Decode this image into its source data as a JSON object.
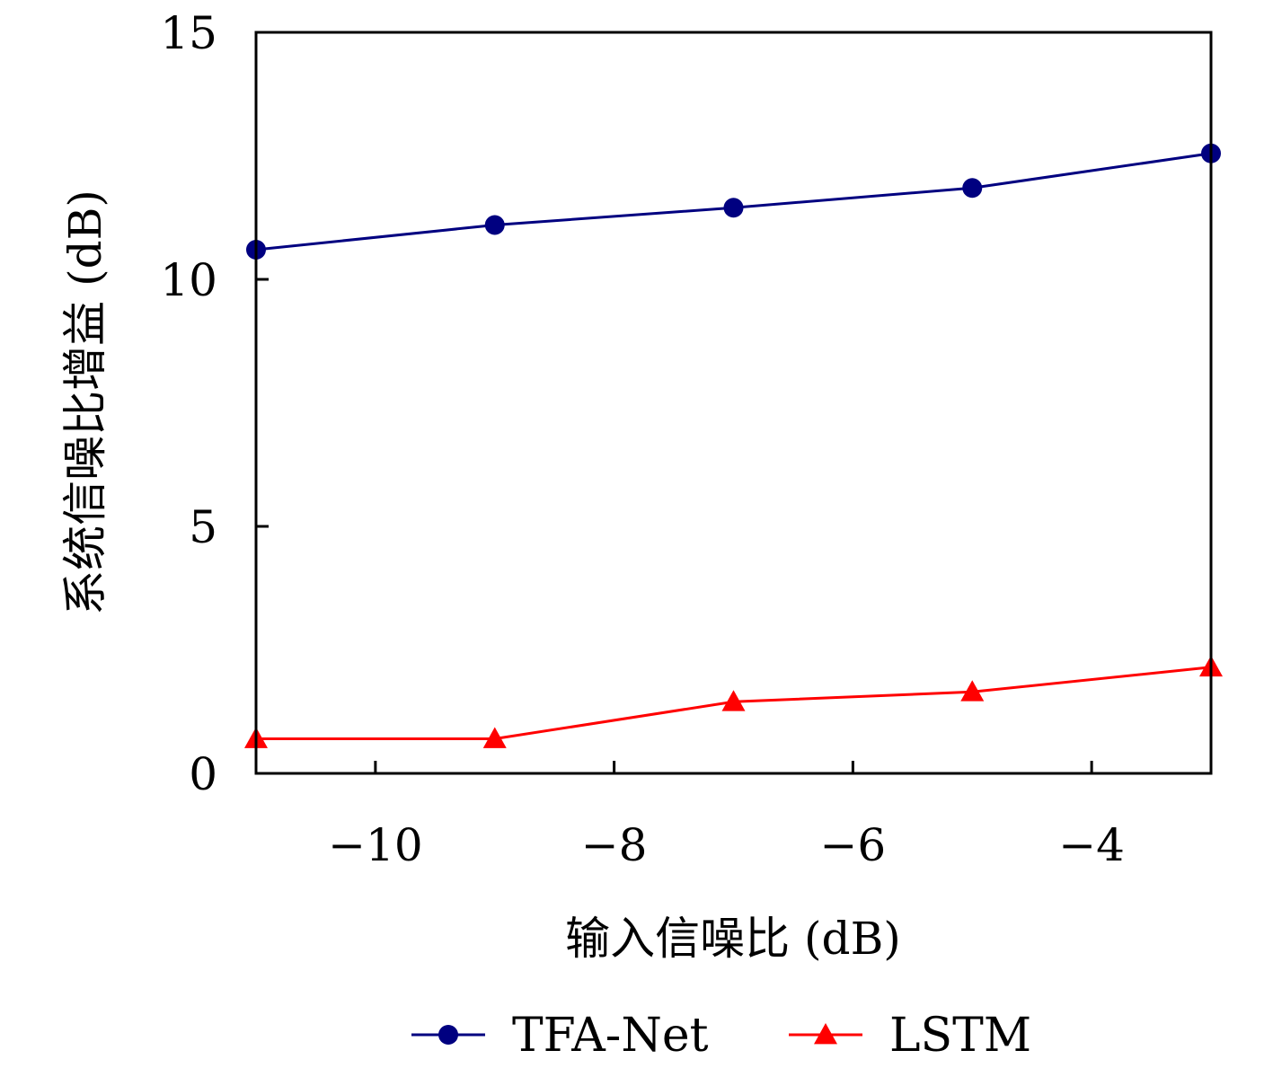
{
  "chart_data": {
    "type": "line",
    "xlabel": "输入信噪比 (dB)",
    "ylabel": "系统信噪比增益 (dB)",
    "xlim": [
      -11,
      -3
    ],
    "ylim": [
      0,
      15
    ],
    "x_ticks": [
      -10,
      -8,
      -6,
      -4
    ],
    "x_tick_labels": [
      "−10",
      "−8",
      "−6",
      "−4"
    ],
    "y_ticks": [
      0,
      5,
      10,
      15
    ],
    "y_tick_labels": [
      "0",
      "5",
      "10",
      "15"
    ],
    "grid": false,
    "legend_position": "bottom",
    "series": [
      {
        "name": "TFA-Net",
        "color": "#000080",
        "marker": "circle",
        "x": [
          -11,
          -9,
          -7,
          -5,
          -3
        ],
        "y": [
          10.6,
          11.1,
          11.45,
          11.85,
          12.55
        ]
      },
      {
        "name": "LSTM",
        "color": "#ff0000",
        "marker": "triangle",
        "x": [
          -11,
          -9,
          -7,
          -5,
          -3
        ],
        "y": [
          0.7,
          0.7,
          1.45,
          1.65,
          2.15
        ]
      }
    ]
  }
}
